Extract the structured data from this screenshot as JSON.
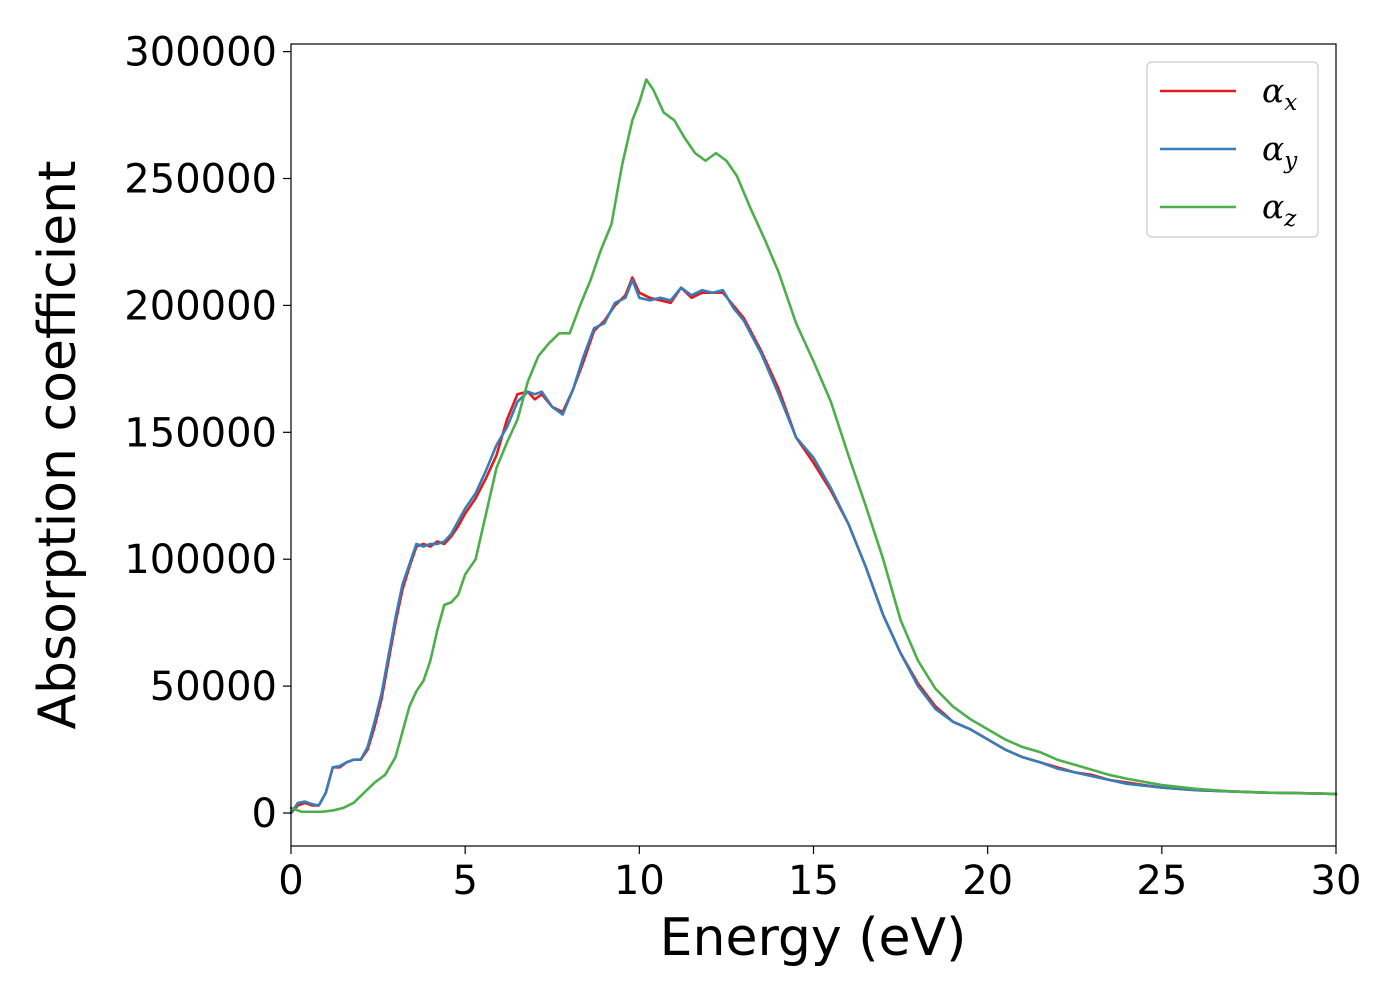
{
  "chart_data": {
    "type": "line",
    "title": "",
    "xlabel": "Energy (eV)",
    "ylabel": "Absorption coefficient",
    "xlim": [
      0,
      30
    ],
    "ylim": [
      -13000,
      303000
    ],
    "xticks": [
      "0",
      "5",
      "10",
      "15",
      "20",
      "25",
      "30"
    ],
    "yticks": [
      "0",
      "50000",
      "100000",
      "150000",
      "200000",
      "250000",
      "300000"
    ],
    "grid": false,
    "legend_position": "top-right",
    "series": [
      {
        "name": "α",
        "subscript": "x",
        "color": "#e41a1c",
        "x": [
          0,
          0.2,
          0.4,
          0.6,
          0.8,
          1.0,
          1.2,
          1.4,
          1.6,
          1.8,
          2.0,
          2.2,
          2.4,
          2.6,
          2.8,
          3.0,
          3.2,
          3.4,
          3.6,
          3.8,
          4.0,
          4.2,
          4.4,
          4.6,
          4.8,
          5.0,
          5.3,
          5.6,
          5.9,
          6.2,
          6.5,
          6.8,
          7.0,
          7.2,
          7.5,
          7.8,
          8.1,
          8.4,
          8.7,
          9.0,
          9.3,
          9.6,
          9.8,
          10.0,
          10.3,
          10.6,
          10.9,
          11.2,
          11.5,
          11.8,
          12.1,
          12.4,
          12.7,
          13.0,
          13.5,
          14.0,
          14.5,
          15.0,
          15.5,
          16.0,
          16.5,
          17.0,
          17.5,
          18.0,
          18.5,
          19.0,
          19.5,
          20.0,
          20.5,
          21.0,
          21.5,
          22.0,
          22.5,
          23.0,
          23.5,
          24.0,
          25.0,
          26.0,
          27.0,
          28.0,
          29.0,
          30.0
        ],
        "values": [
          0,
          3000,
          4000,
          3000,
          3000,
          8000,
          18000,
          18000,
          20000,
          21000,
          21000,
          25000,
          34000,
          45000,
          60000,
          75000,
          88000,
          97000,
          105000,
          106000,
          105000,
          107000,
          106000,
          109000,
          113000,
          118000,
          124000,
          132000,
          141000,
          155000,
          165000,
          166000,
          163000,
          165000,
          160000,
          158000,
          167000,
          178000,
          190000,
          194000,
          200000,
          204000,
          211000,
          205000,
          203000,
          202000,
          201000,
          207000,
          203000,
          205000,
          205000,
          205000,
          200000,
          195000,
          182000,
          167000,
          148000,
          138000,
          127000,
          114000,
          97000,
          78000,
          63000,
          51000,
          42000,
          36000,
          33000,
          29000,
          25000,
          22000,
          20000,
          18000,
          16000,
          15000,
          13000,
          12000,
          10000,
          9000,
          8500,
          8000,
          7800,
          7500
        ]
      },
      {
        "name": "α",
        "subscript": "y",
        "color": "#377eb8",
        "x": [
          0,
          0.2,
          0.4,
          0.6,
          0.8,
          1.0,
          1.2,
          1.4,
          1.6,
          1.8,
          2.0,
          2.2,
          2.4,
          2.6,
          2.8,
          3.0,
          3.2,
          3.4,
          3.6,
          3.8,
          4.0,
          4.2,
          4.4,
          4.6,
          4.8,
          5.0,
          5.3,
          5.6,
          5.9,
          6.2,
          6.5,
          6.8,
          7.0,
          7.2,
          7.5,
          7.8,
          8.1,
          8.4,
          8.7,
          9.0,
          9.3,
          9.6,
          9.8,
          10.0,
          10.3,
          10.6,
          10.9,
          11.2,
          11.5,
          11.8,
          12.1,
          12.4,
          12.7,
          13.0,
          13.5,
          14.0,
          14.5,
          15.0,
          15.5,
          16.0,
          16.5,
          17.0,
          17.5,
          18.0,
          18.5,
          19.0,
          19.5,
          20.0,
          20.5,
          21.0,
          21.5,
          22.0,
          22.5,
          23.0,
          23.5,
          24.0,
          25.0,
          26.0,
          27.0,
          28.0,
          29.0,
          30.0
        ],
        "values": [
          0,
          4000,
          4500,
          3500,
          3000,
          8000,
          18000,
          18500,
          20000,
          21000,
          21000,
          26000,
          36000,
          47000,
          62000,
          77000,
          90000,
          98000,
          106000,
          105000,
          106000,
          106000,
          107000,
          110000,
          115000,
          120000,
          126000,
          135000,
          145000,
          152000,
          162000,
          166000,
          165000,
          166000,
          160000,
          157000,
          167000,
          180000,
          191000,
          193000,
          201000,
          203000,
          210000,
          203000,
          202000,
          203000,
          202000,
          207000,
          204000,
          206000,
          205000,
          206000,
          199000,
          194000,
          181000,
          165000,
          148000,
          140000,
          128000,
          114000,
          97000,
          78000,
          63000,
          50000,
          41000,
          36000,
          33000,
          29000,
          25000,
          22000,
          20000,
          17500,
          16000,
          14500,
          13000,
          11500,
          10000,
          9000,
          8500,
          8000,
          7800,
          7500
        ]
      },
      {
        "name": "α",
        "subscript": "z",
        "color": "#4daf4a",
        "x": [
          0,
          0.3,
          0.6,
          0.9,
          1.2,
          1.5,
          1.8,
          2.1,
          2.4,
          2.7,
          3.0,
          3.2,
          3.4,
          3.6,
          3.8,
          4.0,
          4.2,
          4.4,
          4.6,
          4.8,
          5.0,
          5.3,
          5.6,
          5.9,
          6.2,
          6.5,
          6.8,
          7.1,
          7.4,
          7.7,
          8.0,
          8.3,
          8.6,
          8.9,
          9.2,
          9.5,
          9.8,
          10.0,
          10.2,
          10.4,
          10.7,
          11.0,
          11.3,
          11.6,
          11.9,
          12.2,
          12.5,
          12.8,
          13.2,
          13.6,
          14.0,
          14.5,
          15.0,
          15.5,
          16.0,
          16.5,
          17.0,
          17.5,
          18.0,
          18.5,
          19.0,
          19.5,
          20.0,
          20.5,
          21.0,
          21.5,
          22.0,
          22.5,
          23.0,
          23.5,
          24.0,
          25.0,
          26.0,
          27.0,
          28.0,
          29.0,
          30.0
        ],
        "values": [
          2000,
          500,
          500,
          500,
          1000,
          2000,
          4000,
          8000,
          12000,
          15000,
          22000,
          32000,
          42000,
          48000,
          52000,
          60000,
          72000,
          82000,
          83000,
          86000,
          94000,
          100000,
          118000,
          136000,
          146000,
          155000,
          170000,
          180000,
          185000,
          189000,
          189000,
          200000,
          210000,
          222000,
          232000,
          255000,
          273000,
          280000,
          289000,
          285000,
          276000,
          273000,
          266000,
          260000,
          257000,
          260000,
          257000,
          251000,
          238000,
          226000,
          213000,
          193000,
          178000,
          162000,
          141000,
          121000,
          100000,
          76000,
          60000,
          49000,
          42000,
          37000,
          33000,
          29000,
          26000,
          24000,
          21000,
          19000,
          17000,
          15000,
          13500,
          11000,
          9500,
          8500,
          8000,
          7800,
          7500
        ]
      }
    ]
  }
}
